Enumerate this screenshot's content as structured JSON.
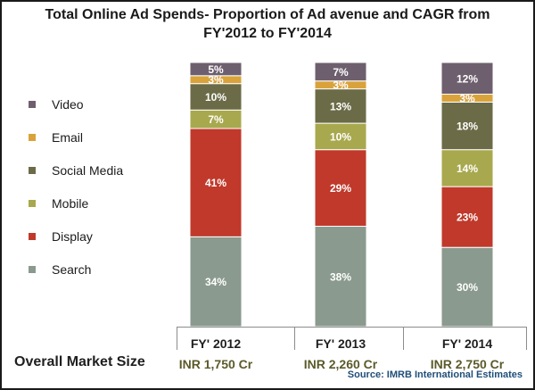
{
  "chart_data": {
    "type": "bar",
    "stacked": true,
    "title_line1": "Total Online Ad Spends- Proportion of Ad avenue  and CAGR from",
    "title_line2": "FY'2012 to FY'2014",
    "categories": [
      "FY' 2012",
      "FY' 2013",
      "FY' 2014"
    ],
    "subcategories": [
      "INR 1,750 Cr",
      "INR 2,260 Cr",
      "INR 2,750 Cr"
    ],
    "footer_label": "Overall Market Size",
    "source": "Source: IMRB International Estimates",
    "legend_position": "left",
    "ylim": [
      0,
      100
    ],
    "series": [
      {
        "name": "Search",
        "color": "#8a9a8e",
        "values": [
          34,
          38,
          30
        ]
      },
      {
        "name": "Display",
        "color": "#c0392b",
        "values": [
          41,
          29,
          23
        ]
      },
      {
        "name": "Mobile",
        "color": "#a8a84e",
        "values": [
          7,
          10,
          14
        ]
      },
      {
        "name": "Social Media",
        "color": "#6b6b48",
        "values": [
          10,
          13,
          18
        ]
      },
      {
        "name": "Email",
        "color": "#d9a23a",
        "values": [
          3,
          3,
          3
        ]
      },
      {
        "name": "Video",
        "color": "#6e5f6e",
        "values": [
          5,
          7,
          12
        ]
      }
    ]
  }
}
